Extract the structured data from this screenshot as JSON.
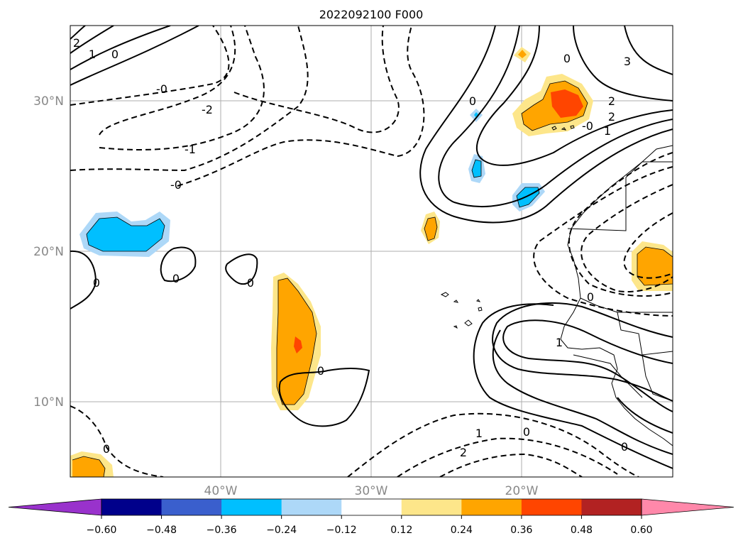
{
  "title": "2022092100 F000",
  "lat_labels": [
    "30°N",
    "20°N",
    "10°N"
  ],
  "lon_labels": [
    "40°W",
    "30°W",
    "20°W"
  ],
  "colorbar": {
    "ticks": [
      "−0.60",
      "−0.48",
      "−0.36",
      "−0.24",
      "−0.12",
      "0.12",
      "0.24",
      "0.36",
      "0.48",
      "0.60"
    ],
    "colors": [
      "#9932cc",
      "#00008b",
      "#3a5fcd",
      "#00bfff",
      "#add8f8",
      "#ffffff",
      "#fde68a",
      "#ffa500",
      "#ff4500",
      "#b22222",
      "#ff88aa"
    ]
  },
  "contour_labels": [
    {
      "id": "c1",
      "text": "-0"
    },
    {
      "id": "c2",
      "text": "-2"
    },
    {
      "id": "c3",
      "text": "-1"
    },
    {
      "id": "c4",
      "text": "-0"
    },
    {
      "id": "c5",
      "text": "0"
    },
    {
      "id": "c6",
      "text": "1"
    },
    {
      "id": "c7",
      "text": "2"
    },
    {
      "id": "c8",
      "text": "0"
    },
    {
      "id": "c9",
      "text": "0"
    },
    {
      "id": "c10",
      "text": "0"
    },
    {
      "id": "c11",
      "text": "0"
    },
    {
      "id": "c12",
      "text": "0"
    },
    {
      "id": "c13",
      "text": "3"
    },
    {
      "id": "c14",
      "text": "2"
    },
    {
      "id": "c15",
      "text": "2"
    },
    {
      "id": "c16",
      "text": "1"
    },
    {
      "id": "c17",
      "text": "0"
    },
    {
      "id": "c18",
      "text": "1"
    },
    {
      "id": "c19",
      "text": "0"
    },
    {
      "id": "c20",
      "text": "0"
    },
    {
      "id": "c21",
      "text": "1"
    },
    {
      "id": "c22",
      "text": "2"
    },
    {
      "id": "c23",
      "text": "0"
    },
    {
      "id": "c24",
      "text": "0"
    },
    {
      "id": "c25",
      "text": "-0"
    }
  ]
}
